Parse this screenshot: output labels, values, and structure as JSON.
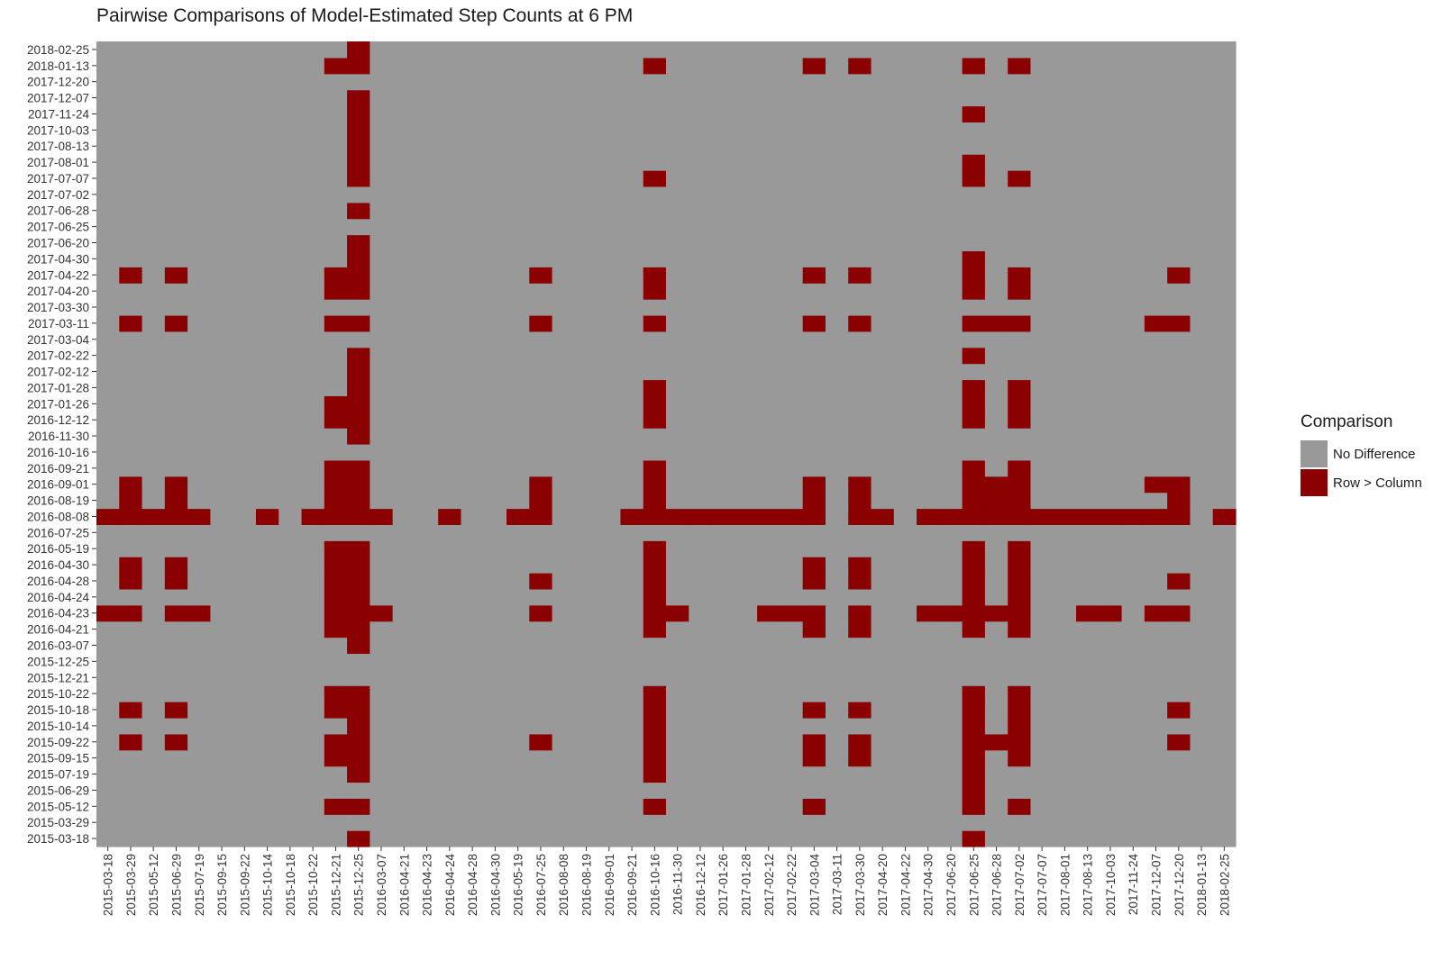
{
  "chart_data": {
    "type": "heatmap",
    "title": "Pairwise Comparisons of Model-Estimated Step Counts at 6 PM",
    "xlabel": "",
    "ylabel": "",
    "grid": false,
    "legend_position": "right",
    "x_categories": [
      "2015-03-18",
      "2015-03-29",
      "2015-05-12",
      "2015-06-29",
      "2015-07-19",
      "2015-09-15",
      "2015-09-22",
      "2015-10-14",
      "2015-10-18",
      "2015-10-22",
      "2015-12-21",
      "2015-12-25",
      "2016-03-07",
      "2016-04-21",
      "2016-04-23",
      "2016-04-24",
      "2016-04-28",
      "2016-04-30",
      "2016-05-19",
      "2016-07-25",
      "2016-08-08",
      "2016-08-19",
      "2016-09-01",
      "2016-09-21",
      "2016-10-16",
      "2016-11-30",
      "2016-12-12",
      "2017-01-26",
      "2017-01-28",
      "2017-02-12",
      "2017-02-22",
      "2017-03-04",
      "2017-03-11",
      "2017-03-30",
      "2017-04-20",
      "2017-04-22",
      "2017-04-30",
      "2017-06-20",
      "2017-06-25",
      "2017-06-28",
      "2017-07-02",
      "2017-07-07",
      "2017-08-01",
      "2017-08-13",
      "2017-10-03",
      "2017-11-24",
      "2017-12-07",
      "2017-12-20",
      "2018-01-13",
      "2018-02-25"
    ],
    "y_categories": [
      "2015-03-18",
      "2015-03-29",
      "2015-05-12",
      "2015-06-29",
      "2015-07-19",
      "2015-09-15",
      "2015-09-22",
      "2015-10-14",
      "2015-10-18",
      "2015-10-22",
      "2015-12-21",
      "2015-12-25",
      "2016-03-07",
      "2016-04-21",
      "2016-04-23",
      "2016-04-24",
      "2016-04-28",
      "2016-04-30",
      "2016-05-19",
      "2016-07-25",
      "2016-08-08",
      "2016-08-19",
      "2016-09-01",
      "2016-09-21",
      "2016-10-16",
      "2016-11-30",
      "2016-12-12",
      "2017-01-26",
      "2017-01-28",
      "2017-02-12",
      "2017-02-22",
      "2017-03-04",
      "2017-03-11",
      "2017-03-30",
      "2017-04-20",
      "2017-04-22",
      "2017-04-30",
      "2017-06-20",
      "2017-06-25",
      "2017-06-28",
      "2017-07-02",
      "2017-07-07",
      "2017-08-01",
      "2017-08-13",
      "2017-10-03",
      "2017-11-24",
      "2017-12-07",
      "2017-12-20",
      "2018-01-13",
      "2018-02-25"
    ],
    "legend": {
      "title": "Comparison",
      "entries": [
        {
          "label": "No Difference",
          "color": "#999999"
        },
        {
          "label": "Row > Column",
          "color": "#8b0000"
        }
      ]
    },
    "row_gt_column_cells": {
      "2018-02-25": [
        "2015-12-25"
      ],
      "2018-01-13": [
        "2015-12-21",
        "2015-12-25",
        "2016-10-16",
        "2017-03-04",
        "2017-03-30",
        "2017-06-25",
        "2017-07-02"
      ],
      "2017-12-20": [],
      "2017-12-07": [
        "2015-12-25"
      ],
      "2017-11-24": [
        "2015-12-25",
        "2017-06-25"
      ],
      "2017-10-03": [
        "2015-12-25"
      ],
      "2017-08-13": [
        "2015-12-25"
      ],
      "2017-08-01": [
        "2015-12-25",
        "2017-06-25"
      ],
      "2017-07-07": [
        "2015-12-25",
        "2016-10-16",
        "2017-06-25",
        "2017-07-02"
      ],
      "2017-07-02": [],
      "2017-06-28": [
        "2015-12-25"
      ],
      "2017-06-25": [],
      "2017-06-20": [
        "2015-12-25"
      ],
      "2017-04-30": [
        "2015-12-25",
        "2017-06-25"
      ],
      "2017-04-22": [
        "2015-03-29",
        "2015-06-29",
        "2015-12-21",
        "2015-12-25",
        "2016-07-25",
        "2016-10-16",
        "2017-03-04",
        "2017-03-30",
        "2017-06-25",
        "2017-07-02",
        "2017-12-20"
      ],
      "2017-04-20": [
        "2015-12-21",
        "2015-12-25",
        "2016-10-16",
        "2017-06-25",
        "2017-07-02"
      ],
      "2017-03-30": [],
      "2017-03-11": [
        "2015-03-29",
        "2015-06-29",
        "2015-12-21",
        "2015-12-25",
        "2016-07-25",
        "2016-10-16",
        "2017-03-04",
        "2017-03-30",
        "2017-06-25",
        "2017-06-28",
        "2017-07-02",
        "2017-12-07",
        "2017-12-20"
      ],
      "2017-03-04": [],
      "2017-02-22": [
        "2015-12-25",
        "2017-06-25"
      ],
      "2017-02-12": [
        "2015-12-25"
      ],
      "2017-01-28": [
        "2015-12-25",
        "2016-10-16",
        "2017-06-25",
        "2017-07-02"
      ],
      "2017-01-26": [
        "2015-12-21",
        "2015-12-25",
        "2016-10-16",
        "2017-06-25",
        "2017-07-02"
      ],
      "2016-12-12": [
        "2015-12-21",
        "2015-12-25",
        "2016-10-16",
        "2017-06-25",
        "2017-07-02"
      ],
      "2016-11-30": [
        "2015-12-25"
      ],
      "2016-10-16": [],
      "2016-09-21": [
        "2015-12-21",
        "2015-12-25",
        "2016-10-16",
        "2017-06-25",
        "2017-07-02"
      ],
      "2016-09-01": [
        "2015-03-29",
        "2015-06-29",
        "2015-12-21",
        "2015-12-25",
        "2016-07-25",
        "2016-10-16",
        "2017-03-04",
        "2017-03-30",
        "2017-06-25",
        "2017-06-28",
        "2017-07-02",
        "2017-12-07",
        "2017-12-20"
      ],
      "2016-08-19": [
        "2015-03-29",
        "2015-06-29",
        "2015-12-21",
        "2015-12-25",
        "2016-07-25",
        "2016-10-16",
        "2017-03-04",
        "2017-03-30",
        "2017-06-25",
        "2017-06-28",
        "2017-07-02",
        "2017-12-20"
      ],
      "2016-08-08": [
        "2015-03-18",
        "2015-03-29",
        "2015-05-12",
        "2015-06-29",
        "2015-07-19",
        "2015-10-14",
        "2015-10-22",
        "2015-12-21",
        "2015-12-25",
        "2016-03-07",
        "2016-04-24",
        "2016-05-19",
        "2016-07-25",
        "2016-09-21",
        "2016-10-16",
        "2016-11-30",
        "2016-12-12",
        "2017-01-26",
        "2017-01-28",
        "2017-02-12",
        "2017-02-22",
        "2017-03-04",
        "2017-03-30",
        "2017-04-20",
        "2017-04-30",
        "2017-06-20",
        "2017-06-25",
        "2017-06-28",
        "2017-07-02",
        "2017-07-07",
        "2017-08-01",
        "2017-08-13",
        "2017-10-03",
        "2017-11-24",
        "2017-12-07",
        "2017-12-20",
        "2018-02-25"
      ],
      "2016-07-25": [],
      "2016-05-19": [
        "2015-12-21",
        "2015-12-25",
        "2016-10-16",
        "2017-06-25",
        "2017-07-02"
      ],
      "2016-04-30": [
        "2015-03-29",
        "2015-06-29",
        "2015-12-21",
        "2015-12-25",
        "2016-10-16",
        "2017-03-04",
        "2017-03-30",
        "2017-06-25",
        "2017-07-02"
      ],
      "2016-04-28": [
        "2015-03-29",
        "2015-06-29",
        "2015-12-21",
        "2015-12-25",
        "2016-07-25",
        "2016-10-16",
        "2017-03-04",
        "2017-03-30",
        "2017-06-25",
        "2017-07-02",
        "2017-12-20"
      ],
      "2016-04-24": [
        "2015-12-21",
        "2015-12-25",
        "2016-10-16",
        "2017-06-25",
        "2017-07-02"
      ],
      "2016-04-23": [
        "2015-03-18",
        "2015-03-29",
        "2015-06-29",
        "2015-07-19",
        "2015-12-21",
        "2015-12-25",
        "2016-03-07",
        "2016-07-25",
        "2016-10-16",
        "2016-11-30",
        "2017-02-12",
        "2017-02-22",
        "2017-03-04",
        "2017-03-30",
        "2017-04-30",
        "2017-06-20",
        "2017-06-25",
        "2017-06-28",
        "2017-07-02",
        "2017-08-13",
        "2017-10-03",
        "2017-12-07",
        "2017-12-20"
      ],
      "2016-04-21": [
        "2015-12-21",
        "2015-12-25",
        "2016-10-16",
        "2017-03-04",
        "2017-03-30",
        "2017-06-25",
        "2017-07-02"
      ],
      "2016-03-07": [
        "2015-12-25"
      ],
      "2015-12-25": [],
      "2015-12-21": [],
      "2015-10-22": [
        "2015-12-21",
        "2015-12-25",
        "2016-10-16",
        "2017-06-25",
        "2017-07-02"
      ],
      "2015-10-18": [
        "2015-03-29",
        "2015-06-29",
        "2015-12-21",
        "2015-12-25",
        "2016-10-16",
        "2017-03-04",
        "2017-03-30",
        "2017-06-25",
        "2017-07-02",
        "2017-12-20"
      ],
      "2015-10-14": [
        "2015-12-25",
        "2016-10-16",
        "2017-06-25",
        "2017-07-02"
      ],
      "2015-09-22": [
        "2015-03-29",
        "2015-06-29",
        "2015-12-21",
        "2015-12-25",
        "2016-07-25",
        "2016-10-16",
        "2017-03-04",
        "2017-03-30",
        "2017-06-25",
        "2017-06-28",
        "2017-07-02",
        "2017-12-20"
      ],
      "2015-09-15": [
        "2015-12-21",
        "2015-12-25",
        "2016-10-16",
        "2017-03-04",
        "2017-03-30",
        "2017-06-25",
        "2017-07-02"
      ],
      "2015-07-19": [
        "2015-12-25",
        "2016-10-16",
        "2017-06-25"
      ],
      "2015-06-29": [
        "2017-06-25"
      ],
      "2015-05-12": [
        "2015-12-21",
        "2015-12-25",
        "2016-10-16",
        "2017-03-04",
        "2017-06-25",
        "2017-07-02"
      ],
      "2015-03-29": [],
      "2015-03-18": [
        "2015-12-25",
        "2017-06-25"
      ]
    }
  }
}
